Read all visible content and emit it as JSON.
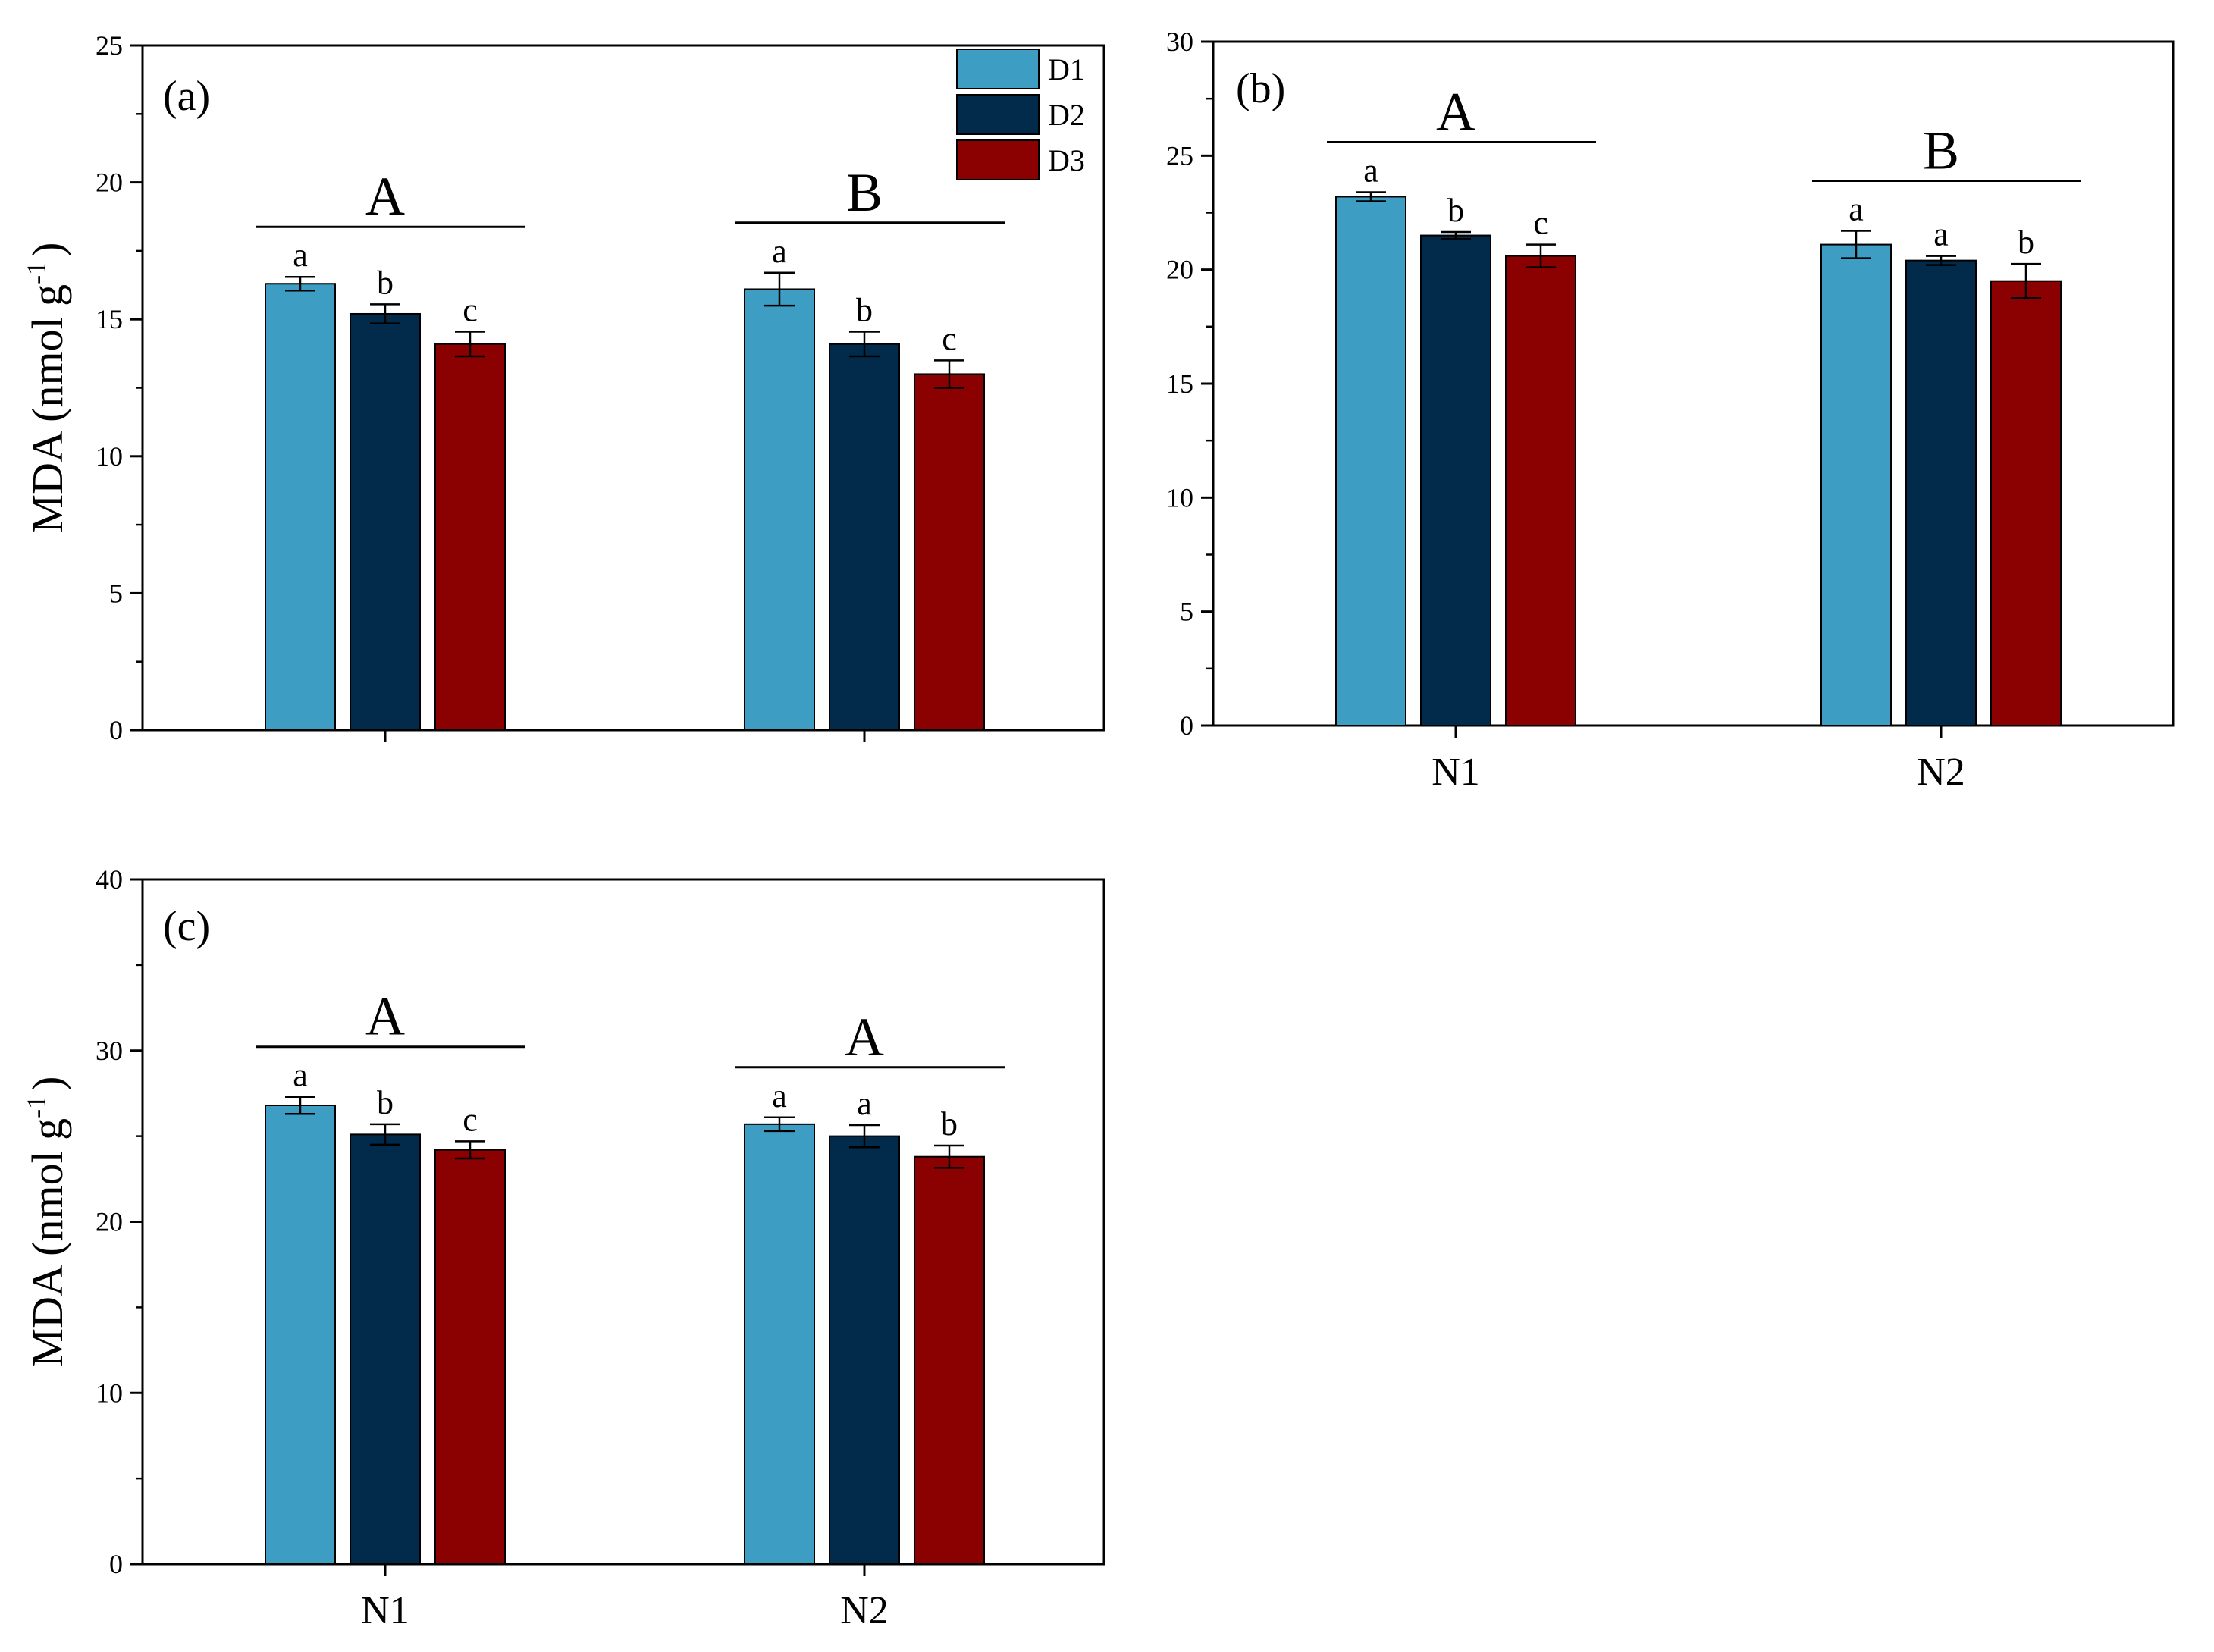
{
  "chart_data": [
    {
      "type": "bar",
      "panel_label": "(a)",
      "ylabel_main": "MDA (nmol g",
      "ylabel_sup": "-1",
      "ylabel_close": ")",
      "ylim": [
        0,
        25
      ],
      "yticks": [
        "0",
        "5",
        "10",
        "15",
        "20",
        "25"
      ],
      "categories": [
        "",
        ""
      ],
      "series": [
        {
          "name": "D1",
          "values": [
            16.3,
            16.1
          ],
          "errors": [
            0.25,
            0.6
          ],
          "letters": [
            "a",
            "a"
          ]
        },
        {
          "name": "D2",
          "values": [
            15.2,
            14.1
          ],
          "errors": [
            0.35,
            0.45
          ],
          "letters": [
            "b",
            "b"
          ]
        },
        {
          "name": "D3",
          "values": [
            14.1,
            13.0
          ],
          "errors": [
            0.45,
            0.5
          ],
          "letters": [
            "c",
            "c"
          ]
        }
      ],
      "group_letters": [
        "A",
        "B"
      ],
      "legend": [
        "D1",
        "D2",
        "D3"
      ]
    },
    {
      "type": "bar",
      "panel_label": "(b)",
      "ylim": [
        0,
        30
      ],
      "yticks": [
        "0",
        "5",
        "10",
        "15",
        "20",
        "25",
        "30"
      ],
      "categories": [
        "N1",
        "N2"
      ],
      "series": [
        {
          "name": "D1",
          "values": [
            23.2,
            21.1
          ],
          "errors": [
            0.2,
            0.6
          ],
          "letters": [
            "a",
            "a"
          ]
        },
        {
          "name": "D2",
          "values": [
            21.5,
            20.4
          ],
          "errors": [
            0.15,
            0.2
          ],
          "letters": [
            "b",
            "a"
          ]
        },
        {
          "name": "D3",
          "values": [
            20.6,
            19.5
          ],
          "errors": [
            0.5,
            0.75
          ],
          "letters": [
            "c",
            "b"
          ]
        }
      ],
      "group_letters": [
        "A",
        "B"
      ]
    },
    {
      "type": "bar",
      "panel_label": "(c)",
      "ylabel_main": "MDA (nmol g",
      "ylabel_sup": "-1",
      "ylabel_close": ")",
      "ylim": [
        0,
        40
      ],
      "yticks": [
        "0",
        "10",
        "20",
        "30",
        "40"
      ],
      "categories": [
        "N1",
        "N2"
      ],
      "series": [
        {
          "name": "D1",
          "values": [
            26.8,
            25.7
          ],
          "errors": [
            0.5,
            0.4
          ],
          "letters": [
            "a",
            "a"
          ]
        },
        {
          "name": "D2",
          "values": [
            25.1,
            25.0
          ],
          "errors": [
            0.6,
            0.65
          ],
          "letters": [
            "b",
            "a"
          ]
        },
        {
          "name": "D3",
          "values": [
            24.2,
            23.8
          ],
          "errors": [
            0.5,
            0.65
          ],
          "letters": [
            "c",
            "b"
          ]
        }
      ],
      "group_letters": [
        "A",
        "A"
      ]
    }
  ],
  "colors": {
    "D1": "#3d9dc3",
    "D2": "#022a4a",
    "D3": "#8b0000",
    "axis": "#000000"
  }
}
